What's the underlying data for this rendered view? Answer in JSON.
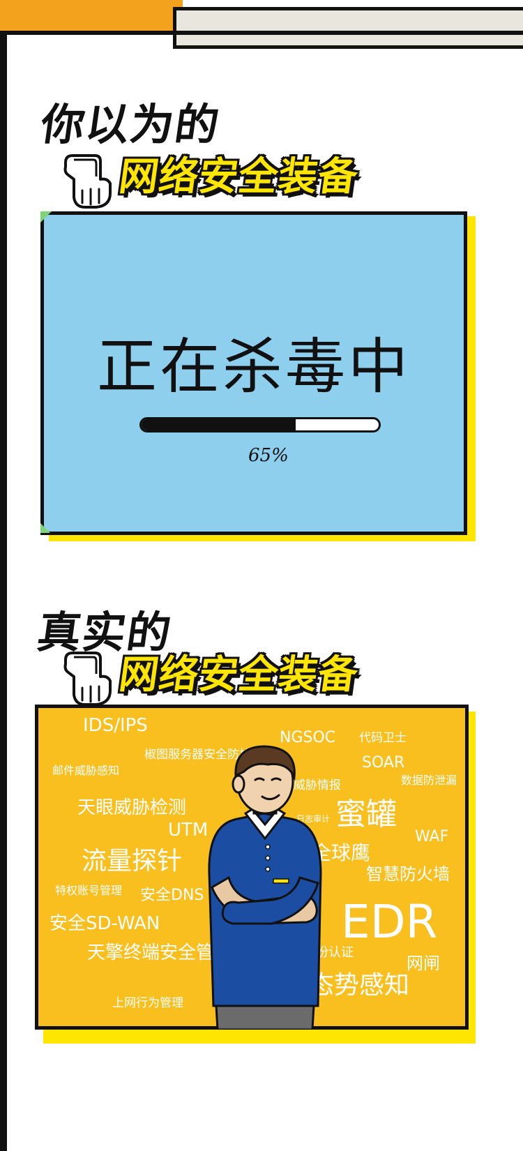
{
  "headings": {
    "believe": "你以为的",
    "real": "真实的",
    "equipment_1": "网络安全装备",
    "equipment_2": "网络安全装备"
  },
  "panel_one": {
    "status_text": "正在杀毒中",
    "progress_label": "65%",
    "progress_fraction": 0.65,
    "background_color": "#8ecfee"
  },
  "panel_two": {
    "background_color": "#f9bf1f",
    "words": [
      "IDS/IPS",
      "NGSOC",
      "代码卫士",
      "椒图服务器安全防护",
      "邮件威胁感知",
      "SOAR",
      "数据防泄漏",
      "威胁情报",
      "天眼威胁检测",
      "蜜罐",
      "日志审计",
      "UTM",
      "WAF",
      "流量探针",
      "全球鹰",
      "智慧防火墙",
      "特权账号管理",
      "安全DNS",
      "EDR",
      "安全SD-WAN",
      "天擎终端安全管理",
      "身份认证",
      "网闸",
      "态势感知",
      "上网行为管理"
    ]
  },
  "colors": {
    "accent_yellow": "#ffe600",
    "accent_orange": "#f3a21e",
    "ink": "#111111"
  },
  "icons": {
    "hand": "pointing-hand-icon"
  }
}
